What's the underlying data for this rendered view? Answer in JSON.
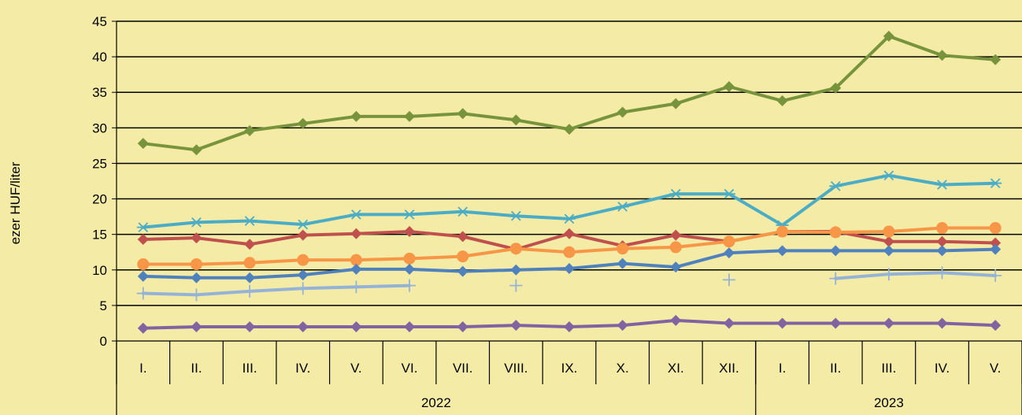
{
  "chart_data": {
    "type": "line",
    "ylabel": "ezer HUF/liter",
    "xlabel": "",
    "ylim": [
      0,
      45
    ],
    "yticks": [
      0,
      5,
      10,
      15,
      20,
      25,
      30,
      35,
      40,
      45
    ],
    "grid": true,
    "legend": "none",
    "background": "#f3eba6",
    "categories": [
      "I.",
      "II.",
      "III.",
      "IV.",
      "V.",
      "VI.",
      "VII.",
      "VIII.",
      "IX.",
      "X.",
      "XI.",
      "XII.",
      "I.",
      "II.",
      "III.",
      "IV.",
      "V."
    ],
    "groups": [
      {
        "label": "2022",
        "count": 12
      },
      {
        "label": "2023",
        "count": 5
      }
    ],
    "series": [
      {
        "color": "#77933c",
        "marker": "diamond",
        "values": [
          27.8,
          26.9,
          29.6,
          30.6,
          31.6,
          31.6,
          32.0,
          31.1,
          29.8,
          32.2,
          33.4,
          35.8,
          33.8,
          35.6,
          42.9,
          40.2,
          39.6
        ]
      },
      {
        "color": "#4bacc6",
        "marker": "asterisk",
        "values": [
          16.0,
          16.7,
          16.9,
          16.4,
          17.8,
          17.8,
          18.2,
          17.6,
          17.2,
          18.9,
          20.7,
          20.7,
          16.3,
          21.8,
          23.3,
          22.0,
          22.2
        ]
      },
      {
        "color": "#c0504d",
        "marker": "diamond",
        "values": [
          14.3,
          14.5,
          13.6,
          14.9,
          15.1,
          15.4,
          14.7,
          12.9,
          15.1,
          13.4,
          14.9,
          14.0,
          15.4,
          15.4,
          14.0,
          14.0,
          13.8
        ]
      },
      {
        "color": "#f79646",
        "marker": "circle",
        "values": [
          10.8,
          10.8,
          11.0,
          11.4,
          11.4,
          11.6,
          11.9,
          13.0,
          12.5,
          13.0,
          13.2,
          14.0,
          15.4,
          15.3,
          15.4,
          15.9,
          15.9
        ]
      },
      {
        "color": "#4f81bd",
        "marker": "diamond",
        "values": [
          9.1,
          8.9,
          8.9,
          9.3,
          10.1,
          10.1,
          9.8,
          10.0,
          10.2,
          10.9,
          10.4,
          12.4,
          12.7,
          12.7,
          12.7,
          12.7,
          12.9
        ]
      },
      {
        "color": "#95b3d7",
        "marker": "plus",
        "values": [
          6.7,
          6.5,
          7.0,
          7.4,
          7.6,
          7.8,
          null,
          7.8,
          null,
          null,
          null,
          8.6,
          null,
          8.8,
          9.4,
          9.6,
          9.2
        ]
      },
      {
        "color": "#8064a2",
        "marker": "diamond",
        "values": [
          1.8,
          2.0,
          2.0,
          2.0,
          2.0,
          2.0,
          2.0,
          2.2,
          2.0,
          2.2,
          2.9,
          2.5,
          2.5,
          2.5,
          2.5,
          2.5,
          2.2
        ]
      }
    ]
  }
}
